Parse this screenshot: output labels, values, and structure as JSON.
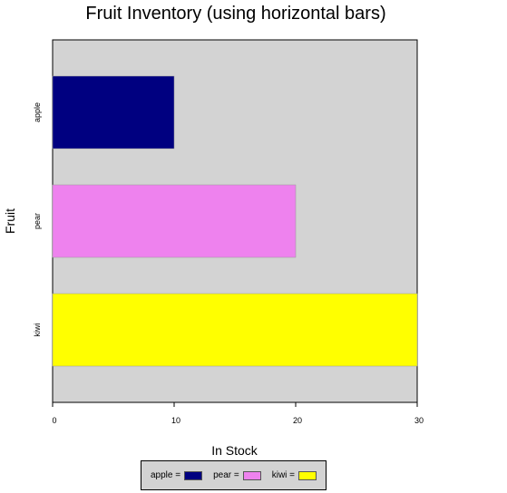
{
  "chart_data": {
    "type": "bar",
    "orientation": "horizontal",
    "title": "Fruit Inventory (using horizontal bars)",
    "xlabel": "In Stock",
    "ylabel": "Fruit",
    "categories": [
      "apple",
      "pear",
      "kiwi"
    ],
    "values": [
      10,
      20,
      30
    ],
    "colors": [
      "#000080",
      "#ee82ee",
      "#ffff00"
    ],
    "xlim": [
      0,
      30
    ],
    "x_ticks": [
      0,
      10,
      20,
      30
    ],
    "plot_background": "#d3d3d3",
    "grid": false,
    "legend": {
      "placement": "bottom",
      "entries": [
        {
          "label": "apple =",
          "color": "#000080"
        },
        {
          "label": "pear =",
          "color": "#ee82ee"
        },
        {
          "label": "kiwi =",
          "color": "#ffff00"
        }
      ]
    }
  }
}
